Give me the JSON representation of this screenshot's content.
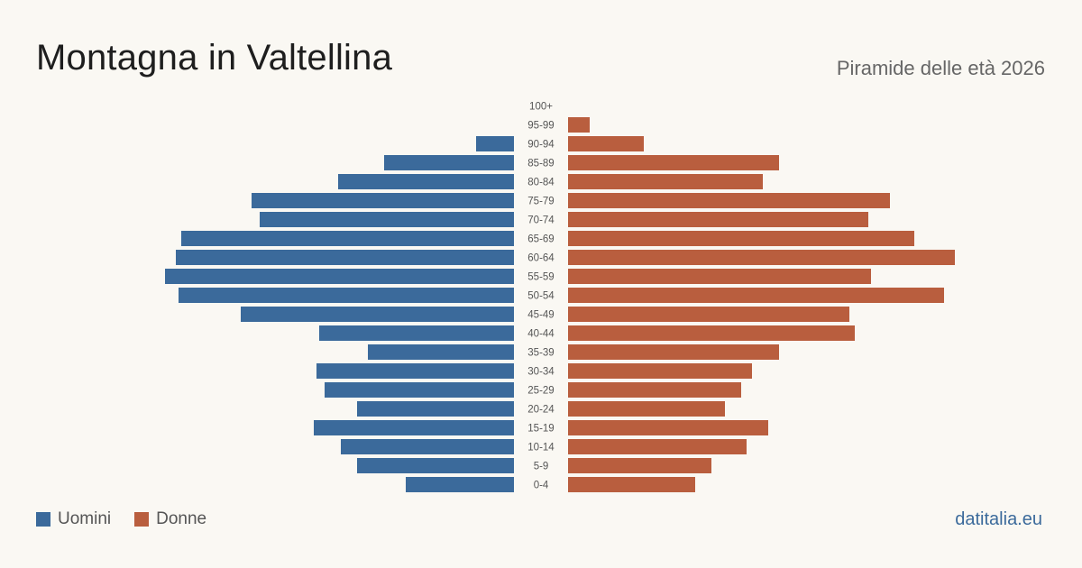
{
  "header": {
    "title": "Montagna in Valtellina",
    "subtitle": "Piramide delle età 2026"
  },
  "legend": {
    "male_label": "Uomini",
    "female_label": "Donne"
  },
  "brand": "datitalia.eu",
  "colors": {
    "male": "#3b6a9b",
    "female": "#b95e3e",
    "background": "#faf8f3"
  },
  "chart_data": {
    "type": "bar",
    "orientation": "horizontal-pyramid",
    "categories": [
      "100+",
      "95-99",
      "90-94",
      "85-89",
      "80-84",
      "75-79",
      "70-74",
      "65-69",
      "60-64",
      "55-59",
      "50-54",
      "45-49",
      "40-44",
      "35-39",
      "30-34",
      "25-29",
      "20-24",
      "15-19",
      "10-14",
      "5-9",
      "0-4"
    ],
    "series": [
      {
        "name": "Uomini",
        "values": [
          0,
          0,
          14,
          48,
          65,
          97,
          94,
          123,
          125,
          129,
          124,
          101,
          72,
          54,
          73,
          70,
          58,
          74,
          64,
          58,
          40
        ]
      },
      {
        "name": "Donne",
        "values": [
          0,
          8,
          28,
          78,
          72,
          119,
          111,
          128,
          143,
          112,
          139,
          104,
          106,
          78,
          68,
          64,
          58,
          74,
          66,
          53,
          47
        ]
      }
    ]
  }
}
